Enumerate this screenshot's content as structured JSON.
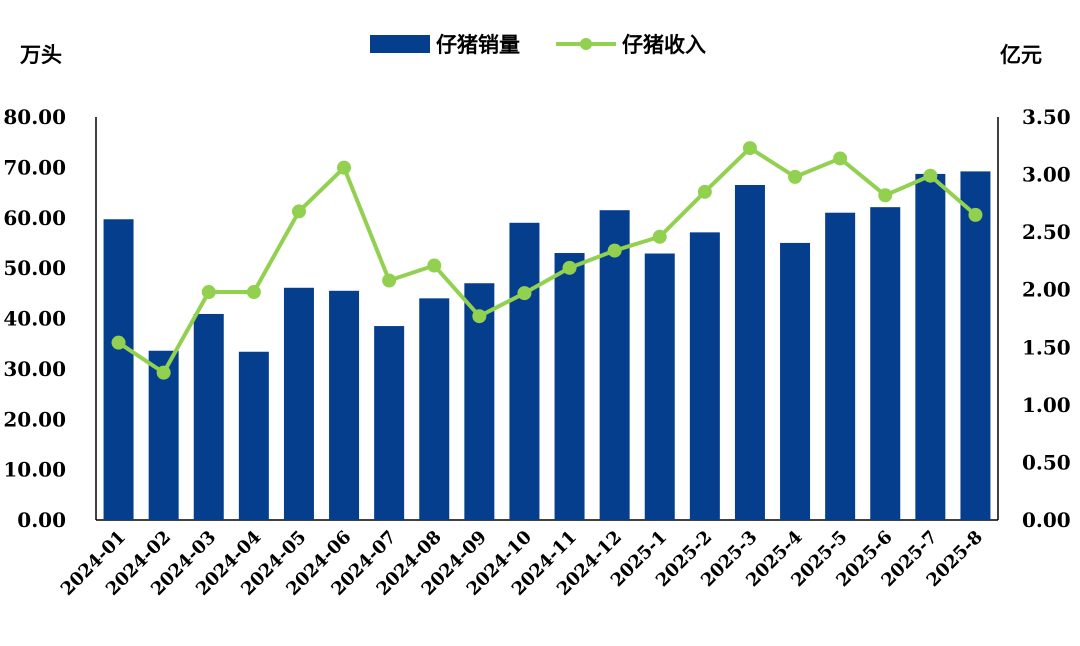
{
  "chart_data": {
    "type": "bar",
    "categories": [
      "2024-01",
      "2024-02",
      "2024-03",
      "2024-04",
      "2024-05",
      "2024-06",
      "2024-07",
      "2024-08",
      "2024-09",
      "2024-10",
      "2024-11",
      "2024-12",
      "2025-1",
      "2025-2",
      "2025-3",
      "2025-4",
      "2025-5",
      "2025-6",
      "2025-7",
      "2025-8"
    ],
    "series": [
      {
        "name": "仔猪销量",
        "kind": "bar",
        "axis": "left",
        "color": "#063E8E",
        "values": [
          59.7,
          33.6,
          40.9,
          33.4,
          46.1,
          45.5,
          38.5,
          44.0,
          47.0,
          59.0,
          53.0,
          61.5,
          52.9,
          57.1,
          66.5,
          55.0,
          61.0,
          62.1,
          68.7,
          69.2
        ]
      },
      {
        "name": "仔猪收入",
        "kind": "line",
        "axis": "right",
        "color": "#92D050",
        "values": [
          1.54,
          1.28,
          1.98,
          1.98,
          2.68,
          3.06,
          2.08,
          2.21,
          1.77,
          1.97,
          2.19,
          2.34,
          2.46,
          2.85,
          3.23,
          2.98,
          3.14,
          2.82,
          2.99,
          2.65
        ]
      }
    ],
    "ylabel_left": "万头",
    "ylabel_right": "亿元",
    "ylim_left": [
      0,
      80
    ],
    "ylim_right": [
      0,
      3.5
    ],
    "yticks_left": [
      "0.00",
      "10.00",
      "20.00",
      "30.00",
      "40.00",
      "50.00",
      "60.00",
      "70.00",
      "80.00"
    ],
    "yticks_right": [
      "0.00",
      "0.50",
      "1.00",
      "1.50",
      "2.00",
      "2.50",
      "3.00",
      "3.50"
    ],
    "grid": false,
    "legend_position": "top-center"
  }
}
